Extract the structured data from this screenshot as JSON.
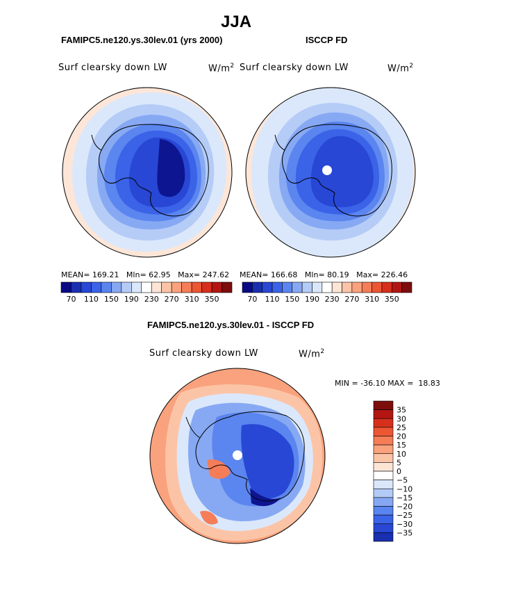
{
  "page": {
    "title": "JJA"
  },
  "panels": {
    "model": {
      "title": "FAMIPC5.ne120.ys.30lev.01 (yrs 2000)",
      "variable": "Surf clearsky down LW",
      "units_base": "W/m",
      "units_exp": "2",
      "mean_label": "MEAN=",
      "mean": "169.21",
      "min_label": "Mln=",
      "min": "62.95",
      "max_label": "Max=",
      "max": "247.62"
    },
    "obs": {
      "title": "ISCCP FD",
      "variable": "Surf clearsky down LW",
      "units_base": "W/m",
      "units_exp": "2",
      "mean_label": "MEAN=",
      "mean": "166.68",
      "min_label": "Mln=",
      "min": "80.19",
      "max_label": "Max=",
      "max": "226.46"
    },
    "diff": {
      "title": "FAMIPC5.ne120.ys.30lev.01 - ISCCP FD",
      "variable": "Surf clearsky down LW",
      "units_base": "W/m",
      "units_exp": "2",
      "min_label": "MIN =",
      "min": "-36.10",
      "max_label": "MAX =",
      "max": "18.83"
    }
  },
  "chart_data": [
    {
      "type": "heatmap",
      "projection": "south polar stereographic",
      "season": "JJA",
      "title": "FAMIPC5.ne120.ys.30lev.01 (yrs 2000)",
      "variable": "Surf clearsky down LW",
      "units": "W/m2",
      "mean": 169.21,
      "min": 62.95,
      "max": 247.62,
      "colorbar_ticks": [
        70,
        110,
        150,
        190,
        230,
        270,
        310,
        350
      ],
      "colorbar_tick_labels": [
        "70",
        "110",
        "150",
        "190",
        "230",
        "270",
        "310",
        "350"
      ],
      "colorbar_colors": [
        "#0a0a85",
        "#1a2eb0",
        "#2747d4",
        "#3b63e8",
        "#5a84ef",
        "#86a8f3",
        "#b4cbf7",
        "#dae7fb",
        "#ffffff",
        "#fde5d6",
        "#fcc4a6",
        "#f9a27d",
        "#f57d57",
        "#ec5633",
        "#d6301d",
        "#b21612",
        "#7d0c0c"
      ]
    },
    {
      "type": "heatmap",
      "projection": "south polar stereographic",
      "season": "JJA",
      "title": "ISCCP FD",
      "variable": "Surf clearsky down LW",
      "units": "W/m2",
      "mean": 166.68,
      "min": 80.19,
      "max": 226.46,
      "colorbar_ticks": [
        70,
        110,
        150,
        190,
        230,
        270,
        310,
        350
      ],
      "colorbar_tick_labels": [
        "70",
        "110",
        "150",
        "190",
        "230",
        "270",
        "310",
        "350"
      ],
      "colorbar_colors": [
        "#0a0a85",
        "#1a2eb0",
        "#2747d4",
        "#3b63e8",
        "#5a84ef",
        "#86a8f3",
        "#b4cbf7",
        "#dae7fb",
        "#ffffff",
        "#fde5d6",
        "#fcc4a6",
        "#f9a27d",
        "#f57d57",
        "#ec5633",
        "#d6301d",
        "#b21612",
        "#7d0c0c"
      ]
    },
    {
      "type": "heatmap",
      "projection": "south polar stereographic",
      "season": "JJA",
      "title": "FAMIPC5.ne120.ys.30lev.01 - ISCCP FD",
      "variable": "Surf clearsky down LW",
      "units": "W/m2",
      "min": -36.1,
      "max": 18.83,
      "colorbar_ticks": [
        35,
        30,
        25,
        20,
        15,
        10,
        5,
        0,
        -5,
        -10,
        -15,
        -20,
        -25,
        -30,
        -35
      ],
      "colorbar_tick_labels": [
        "35",
        "30",
        "25",
        "20",
        "15",
        "10",
        "5",
        "0",
        "−5",
        "−10",
        "−15",
        "−20",
        "−25",
        "−30",
        "−35"
      ],
      "colorbar_colors": [
        "#7d0c0c",
        "#b21612",
        "#d6301d",
        "#ec5633",
        "#f57d57",
        "#f9a27d",
        "#fcc4a6",
        "#fde5d6",
        "#ffffff",
        "#dae7fb",
        "#b4cbf7",
        "#86a8f3",
        "#5a84ef",
        "#3b63e8",
        "#2747d4",
        "#1a2eb0"
      ]
    }
  ]
}
